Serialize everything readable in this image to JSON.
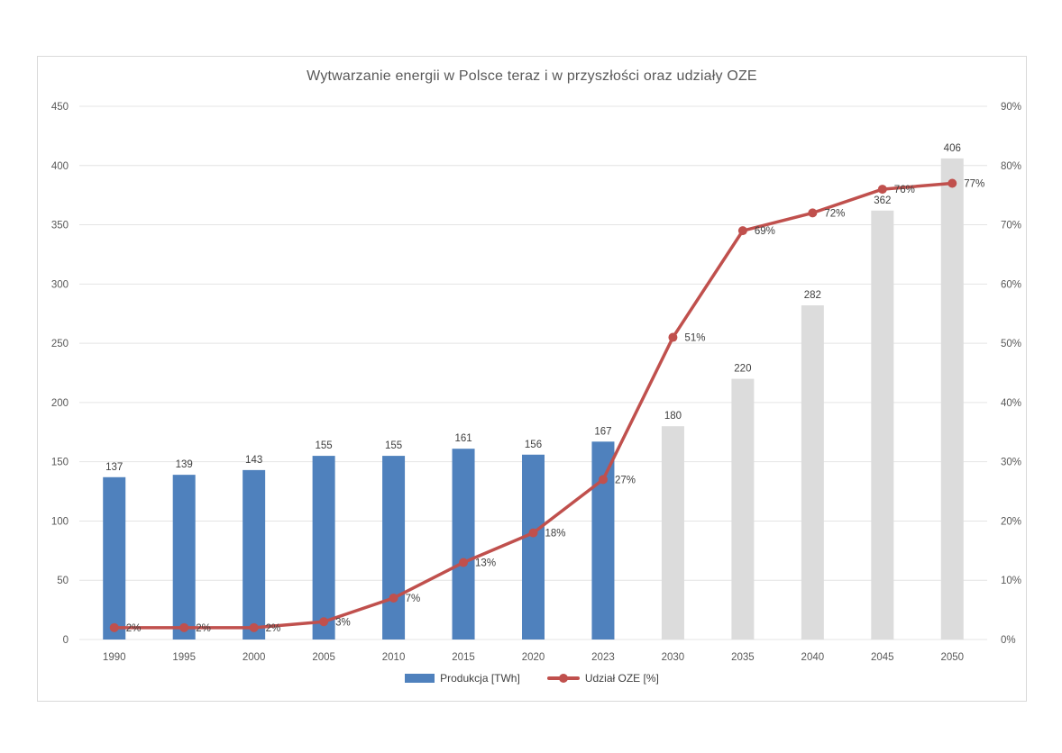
{
  "chart": {
    "title": "Wytwarzanie energii w Polsce teraz i w przyszłości oraz udziały OZE",
    "legend": [
      {
        "label": "Produkcja  [TWh]",
        "swatch": "bar"
      },
      {
        "label": "Udział OZE [%]",
        "swatch": "line"
      }
    ],
    "colors": {
      "bar_historical": "#4f81bd",
      "bar_forecast": "#dcdcdc",
      "line": "#c0504d",
      "gridline": "#e4e4e4",
      "border": "#d9d9d9",
      "axis_text": "#595959",
      "data_label_text": "#404040"
    }
  },
  "chart_data": {
    "type": "bar+line",
    "categories": [
      "1990",
      "1995",
      "2000",
      "2005",
      "2010",
      "2015",
      "2020",
      "2023",
      "2030",
      "2035",
      "2040",
      "2045",
      "2050"
    ],
    "series": [
      {
        "name": "Produkcja  [TWh]",
        "type": "bar",
        "axis": "left",
        "values": [
          137,
          139,
          143,
          155,
          155,
          161,
          156,
          167,
          180,
          220,
          282,
          362,
          406
        ],
        "historical_count": 8
      },
      {
        "name": "Udział OZE [%]",
        "type": "line",
        "axis": "right",
        "values": [
          2,
          2,
          2,
          3,
          7,
          13,
          18,
          27,
          51,
          69,
          72,
          76,
          77
        ],
        "point_labels": [
          "2%",
          "2%",
          "2%",
          "3%",
          "7%",
          "13%",
          "18%",
          "27%",
          "51%",
          "69%",
          "72%",
          "76%",
          "77%"
        ]
      }
    ],
    "left_axis": {
      "min": 0,
      "max": 450,
      "step": 50,
      "tick_labels": [
        "0",
        "50",
        "100",
        "150",
        "200",
        "250",
        "300",
        "350",
        "400",
        "450"
      ]
    },
    "right_axis": {
      "min": 0,
      "max": 90,
      "step": 10,
      "tick_labels": [
        "0%",
        "10%",
        "20%",
        "30%",
        "40%",
        "50%",
        "60%",
        "70%",
        "80%",
        "90%"
      ]
    },
    "grid": "horizontal",
    "legend_position": "bottom",
    "title": "Wytwarzanie energii w Polsce teraz i w przyszłości oraz udziały OZE"
  }
}
